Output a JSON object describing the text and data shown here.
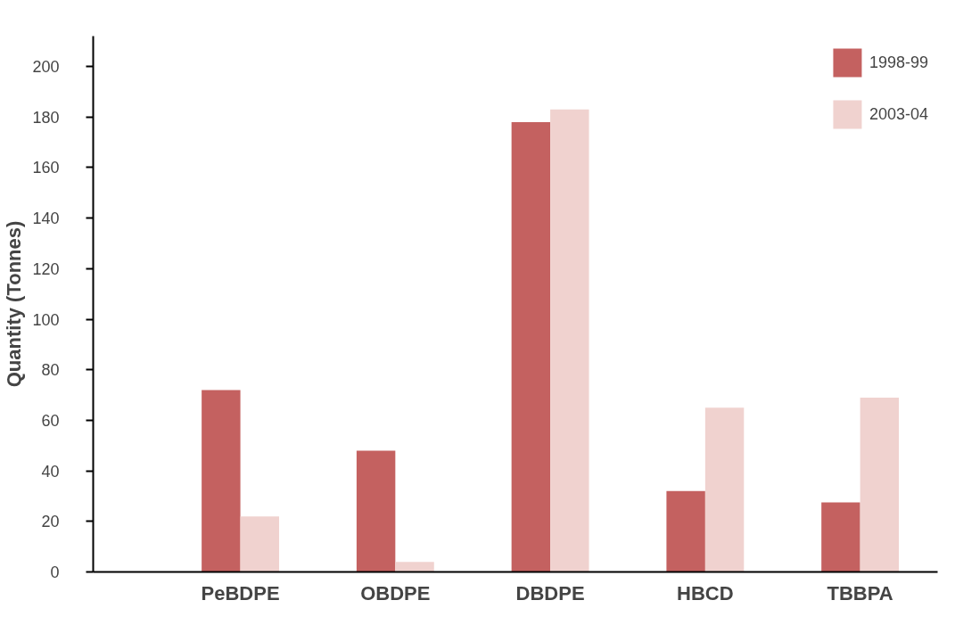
{
  "chart_data": {
    "type": "bar",
    "ylabel": "Quantity (Tonnes)",
    "categories": [
      "PeBDPE",
      "OBDPE",
      "DBDPE",
      "HBCD",
      "TBBPA"
    ],
    "series": [
      {
        "name": "1998-99",
        "color": "#c46160",
        "values": [
          72,
          48,
          178,
          32,
          27.5
        ]
      },
      {
        "name": "2003-04",
        "color": "#f0d2cf",
        "values": [
          22,
          4,
          183,
          65,
          69
        ]
      }
    ],
    "ylim": [
      0,
      212
    ],
    "yticks": [
      0,
      20,
      40,
      60,
      80,
      100,
      120,
      140,
      160,
      180,
      200
    ],
    "grid": false,
    "legend": "top right"
  }
}
